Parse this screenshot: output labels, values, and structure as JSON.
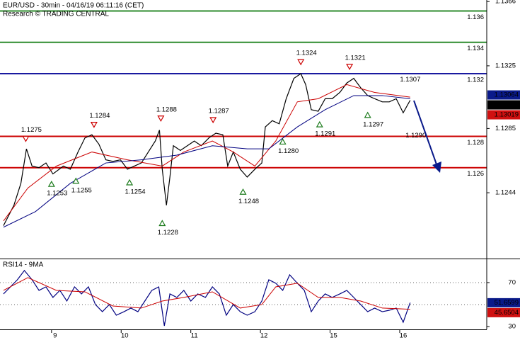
{
  "chart_data": [
    {
      "type": "line",
      "title": "EUR/USD - 30min - 04/16/19 06:11:16 (CET)",
      "subtitle": "Research © TRADING CENTRAL",
      "xlim": [
        0.26,
        7.25
      ],
      "ylim": [
        1.1202,
        1.1367
      ],
      "yticks": [
        1.1366,
        1.1325,
        1.1285,
        1.1244
      ],
      "series": [
        {
          "color": "#000000",
          "x": [
            0.31,
            0.46,
            0.56,
            0.64,
            0.72,
            0.82,
            0.92,
            1.02,
            1.17,
            1.27,
            1.38,
            1.48,
            1.58,
            1.68,
            1.78,
            1.88,
            1.99,
            2.09,
            2.19,
            2.29,
            2.39,
            2.49,
            2.55,
            2.59,
            2.65,
            2.7,
            2.75,
            2.85,
            2.95,
            3.05,
            3.15,
            3.26,
            3.36,
            3.46,
            3.53,
            3.61,
            3.71,
            3.81,
            3.92,
            4.02,
            4.07,
            4.17,
            4.27,
            4.37,
            4.48,
            4.58,
            4.65,
            4.73,
            4.83,
            4.93,
            5.03,
            5.14,
            5.24,
            5.34,
            5.44,
            5.54,
            5.64,
            5.75,
            5.85,
            5.95,
            6.05,
            6.15
          ],
          "values": [
            1.1223,
            1.1236,
            1.125,
            1.1272,
            1.1261,
            1.126,
            1.1263,
            1.1256,
            1.1261,
            1.1259,
            1.127,
            1.1279,
            1.1281,
            1.1275,
            1.1265,
            1.1264,
            1.1265,
            1.1259,
            1.1261,
            1.1263,
            1.127,
            1.1277,
            1.1284,
            1.1259,
            1.1236,
            1.1254,
            1.1274,
            1.1271,
            1.1274,
            1.1277,
            1.1274,
            1.1279,
            1.1282,
            1.1281,
            1.1261,
            1.127,
            1.1259,
            1.1254,
            1.1259,
            1.1263,
            1.1286,
            1.129,
            1.1288,
            1.1304,
            1.1317,
            1.132,
            1.1313,
            1.1297,
            1.1296,
            1.1304,
            1.1304,
            1.1308,
            1.1314,
            1.1317,
            1.1311,
            1.1306,
            1.1304,
            1.1302,
            1.1302,
            1.1304,
            1.1295,
            1.1303
          ]
        },
        {
          "color": "#cc0000",
          "x": [
            0.31,
            0.66,
            1.07,
            1.58,
            2.09,
            2.59,
            2.9,
            3.31,
            3.61,
            3.92,
            4.22,
            4.53,
            4.83,
            5.24,
            5.64,
            6.15
          ],
          "values": [
            1.1226,
            1.1247,
            1.1261,
            1.127,
            1.1265,
            1.1261,
            1.127,
            1.1277,
            1.127,
            1.1261,
            1.1277,
            1.1302,
            1.1304,
            1.1313,
            1.1308,
            1.1305
          ]
        },
        {
          "color": "#000080",
          "x": [
            0.31,
            0.77,
            1.27,
            1.78,
            2.29,
            2.8,
            3.31,
            3.81,
            4.12,
            4.53,
            4.93,
            5.34,
            5.75,
            6.15
          ],
          "values": [
            1.1222,
            1.1232,
            1.125,
            1.1263,
            1.1265,
            1.1268,
            1.1274,
            1.1272,
            1.1272,
            1.1286,
            1.1297,
            1.1306,
            1.1306,
            1.1304
          ]
        }
      ],
      "levels": [
        {
          "value": 1.136,
          "color": "#2e8b2e"
        },
        {
          "value": 1.134,
          "color": "#2e8b2e"
        },
        {
          "value": 1.132,
          "color": "#1a1aa0"
        },
        {
          "value": 1.128,
          "color": "#cc0000"
        },
        {
          "value": 1.126,
          "color": "#cc0000"
        }
      ],
      "price_tags": [
        {
          "value": 1.13064,
          "color": "#0a1a8a"
        },
        {
          "value": 1.13037,
          "color": "#000000"
        },
        {
          "value": 1.13019,
          "color": "#d01010"
        }
      ],
      "annotations": [
        {
          "label": "1.1275",
          "x": 0.63,
          "y": 1.1275,
          "kind": "high",
          "marker": true
        },
        {
          "label": "1.1253",
          "x": 1.0,
          "y": 1.1253,
          "kind": "low",
          "marker": true
        },
        {
          "label": "1.1255",
          "x": 1.35,
          "y": 1.1255,
          "kind": "low",
          "marker": true
        },
        {
          "label": "1.1284",
          "x": 1.61,
          "y": 1.1284,
          "kind": "high",
          "marker": true
        },
        {
          "label": "1.1254",
          "x": 2.12,
          "y": 1.1254,
          "kind": "low",
          "marker": true
        },
        {
          "label": "1.1288",
          "x": 2.57,
          "y": 1.1288,
          "kind": "high",
          "marker": true
        },
        {
          "label": "1.1228",
          "x": 2.59,
          "y": 1.1228,
          "kind": "low",
          "marker": true
        },
        {
          "label": "1.1287",
          "x": 3.32,
          "y": 1.1287,
          "kind": "high",
          "marker": true
        },
        {
          "label": "1.1248",
          "x": 3.75,
          "y": 1.1248,
          "kind": "low",
          "marker": true
        },
        {
          "label": "1.1280",
          "x": 4.32,
          "y": 1.128,
          "kind": "low",
          "marker": true
        },
        {
          "label": "1.1324",
          "x": 4.58,
          "y": 1.1324,
          "kind": "high",
          "marker": true
        },
        {
          "label": "1.1291",
          "x": 4.85,
          "y": 1.1291,
          "kind": "low",
          "marker": true
        },
        {
          "label": "1.1321",
          "x": 5.28,
          "y": 1.1321,
          "kind": "high",
          "marker": true
        },
        {
          "label": "1.1297",
          "x": 5.54,
          "y": 1.1297,
          "kind": "low",
          "marker": true
        },
        {
          "label": "1.1307",
          "x": 6.07,
          "y": 1.1307,
          "kind": "high",
          "marker": false
        },
        {
          "label": "1.1290",
          "x": 6.15,
          "y": 1.129,
          "kind": "low",
          "marker": false
        }
      ]
    },
    {
      "type": "line",
      "title": "RSI14 - 9MA",
      "xlim": [
        0.26,
        7.25
      ],
      "ylim": [
        27.4,
        91.9
      ],
      "yticks": [
        70,
        30
      ],
      "grid_levels": [
        70,
        50
      ],
      "xticks": [
        {
          "value": 1,
          "label": "9"
        },
        {
          "value": 2,
          "label": "10"
        },
        {
          "value": 3,
          "label": "11"
        },
        {
          "value": 4,
          "label": "12"
        },
        {
          "value": 5,
          "label": "15"
        },
        {
          "value": 6,
          "label": "16"
        }
      ],
      "series": [
        {
          "color": "#000080",
          "x": [
            0.31,
            0.41,
            0.51,
            0.61,
            0.72,
            0.82,
            0.92,
            1.02,
            1.12,
            1.22,
            1.33,
            1.43,
            1.53,
            1.63,
            1.73,
            1.83,
            1.93,
            2.04,
            2.14,
            2.24,
            2.34,
            2.44,
            2.54,
            2.62,
            2.7,
            2.8,
            2.9,
            3.0,
            3.1,
            3.21,
            3.31,
            3.41,
            3.51,
            3.61,
            3.71,
            3.81,
            3.92,
            4.02,
            4.12,
            4.22,
            4.32,
            4.42,
            4.53,
            4.63,
            4.73,
            4.83,
            4.93,
            5.03,
            5.14,
            5.24,
            5.34,
            5.44,
            5.54,
            5.64,
            5.75,
            5.85,
            5.95,
            6.05,
            6.15
          ],
          "values": [
            59.7,
            66.1,
            72.6,
            81.0,
            72.6,
            62.9,
            66.1,
            56.5,
            62.9,
            53.2,
            66.1,
            59.7,
            66.1,
            50.0,
            43.5,
            50.0,
            40.3,
            43.5,
            46.8,
            43.5,
            53.2,
            62.9,
            66.1,
            30.6,
            59.7,
            56.5,
            62.9,
            53.2,
            59.7,
            56.5,
            66.1,
            59.7,
            40.3,
            50.0,
            43.5,
            40.3,
            43.5,
            53.2,
            72.6,
            69.4,
            62.9,
            77.1,
            69.4,
            62.9,
            43.5,
            53.2,
            59.7,
            56.5,
            59.7,
            62.9,
            56.5,
            50.0,
            43.5,
            46.8,
            43.5,
            44.8,
            46.8,
            33.9,
            51.7
          ]
        },
        {
          "color": "#cc0000",
          "x": [
            0.31,
            0.66,
            1.07,
            1.48,
            1.88,
            2.29,
            2.59,
            2.9,
            3.31,
            3.71,
            4.02,
            4.22,
            4.53,
            4.83,
            5.14,
            5.44,
            5.75,
            6.15
          ],
          "values": [
            62.9,
            74.5,
            62.9,
            61.6,
            48.7,
            46.8,
            53.2,
            56.5,
            61.6,
            46.8,
            50.0,
            66.1,
            69.4,
            56.5,
            56.5,
            53.2,
            46.8,
            45.7
          ]
        }
      ],
      "price_tags": [
        {
          "value": 51.6599,
          "color": "#0a1a8a"
        },
        {
          "value": 45.6504,
          "color": "#d01010"
        }
      ]
    }
  ]
}
